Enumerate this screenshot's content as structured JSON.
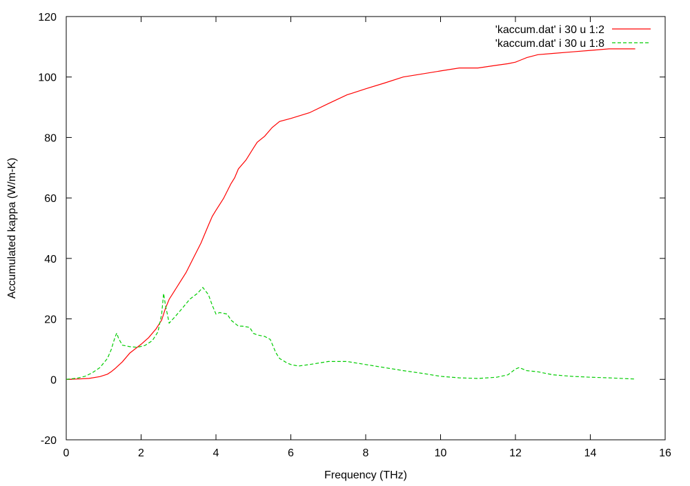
{
  "chart_data": {
    "type": "line",
    "title": "",
    "xlabel": "Frequency (THz)",
    "ylabel": "Accumulated kappa (W/m-K)",
    "xlim": [
      0,
      16
    ],
    "ylim": [
      -20,
      120
    ],
    "xticks": [
      0,
      2,
      4,
      6,
      8,
      10,
      12,
      14,
      16
    ],
    "yticks": [
      -20,
      0,
      20,
      40,
      60,
      80,
      100,
      120
    ],
    "grid": false,
    "legend_position": "top-right",
    "series": [
      {
        "name": "'kaccum.dat' i 30 u 1:2",
        "color": "#ff0000",
        "dash": "solid",
        "x": [
          0,
          0.3,
          0.6,
          0.9,
          1.1,
          1.2,
          1.3,
          1.5,
          1.7,
          2.0,
          2.2,
          2.4,
          2.55,
          2.65,
          2.75,
          3.0,
          3.2,
          3.4,
          3.6,
          3.8,
          3.9,
          4.0,
          4.2,
          4.4,
          4.5,
          4.6,
          4.8,
          5.0,
          5.1,
          5.3,
          5.5,
          5.7,
          6.0,
          6.5,
          7.0,
          7.5,
          8.0,
          8.5,
          9.0,
          9.5,
          10.0,
          10.5,
          11.0,
          11.5,
          11.8,
          12.0,
          12.1,
          12.3,
          12.6,
          13.0,
          13.5,
          14.0,
          14.5,
          15.0,
          15.2
        ],
        "y": [
          0,
          0.1,
          0.3,
          0.9,
          1.7,
          2.5,
          3.5,
          5.8,
          8.7,
          11.6,
          13.8,
          16.7,
          19.6,
          23.5,
          26.5,
          31.4,
          35.3,
          40.2,
          45.1,
          51.0,
          53.9,
          55.9,
          59.8,
          64.7,
          66.7,
          69.6,
          72.5,
          76.5,
          78.4,
          80.4,
          83.3,
          85.3,
          86.3,
          88.2,
          91.2,
          94.1,
          96.1,
          98.0,
          100.0,
          101.0,
          102.0,
          103.0,
          103.0,
          103.9,
          104.4,
          104.9,
          105.4,
          106.4,
          107.4,
          107.8,
          108.3,
          108.8,
          109.3,
          109.3,
          109.3
        ]
      },
      {
        "name": "'kaccum.dat' i 30 u 1:8",
        "color": "#00cc00",
        "dash": "dashed",
        "x": [
          0,
          0.3,
          0.5,
          0.7,
          0.9,
          1.1,
          1.2,
          1.3,
          1.35,
          1.4,
          1.5,
          1.7,
          1.9,
          2.1,
          2.3,
          2.45,
          2.55,
          2.6,
          2.65,
          2.75,
          2.9,
          3.1,
          3.3,
          3.5,
          3.65,
          3.8,
          3.9,
          4.0,
          4.1,
          4.3,
          4.4,
          4.6,
          4.7,
          4.9,
          5.0,
          5.1,
          5.3,
          5.45,
          5.6,
          5.7,
          5.9,
          6.0,
          6.2,
          6.5,
          7.0,
          7.5,
          8.0,
          8.5,
          9.0,
          9.5,
          10.0,
          10.5,
          11.0,
          11.5,
          11.8,
          12.0,
          12.1,
          12.3,
          12.6,
          13.0,
          13.5,
          14.0,
          14.5,
          15.0,
          15.2
        ],
        "y": [
          0,
          0.4,
          1.0,
          2.2,
          3.9,
          6.9,
          9.8,
          13.8,
          15.3,
          13.5,
          11.3,
          10.8,
          10.6,
          11.2,
          12.8,
          15.7,
          21.6,
          28.4,
          24.5,
          18.6,
          20.6,
          23.5,
          26.5,
          28.4,
          30.4,
          28.0,
          24.5,
          21.6,
          22.1,
          21.6,
          19.6,
          17.6,
          17.6,
          17.2,
          15.2,
          14.7,
          14.2,
          13.2,
          8.8,
          6.9,
          5.4,
          4.9,
          4.4,
          4.9,
          5.9,
          5.9,
          4.9,
          3.9,
          2.9,
          2.0,
          1.0,
          0.5,
          0.3,
          0.7,
          1.5,
          3.4,
          3.9,
          2.9,
          2.5,
          1.5,
          1.0,
          0.7,
          0.5,
          0.2,
          0.1
        ]
      }
    ]
  }
}
